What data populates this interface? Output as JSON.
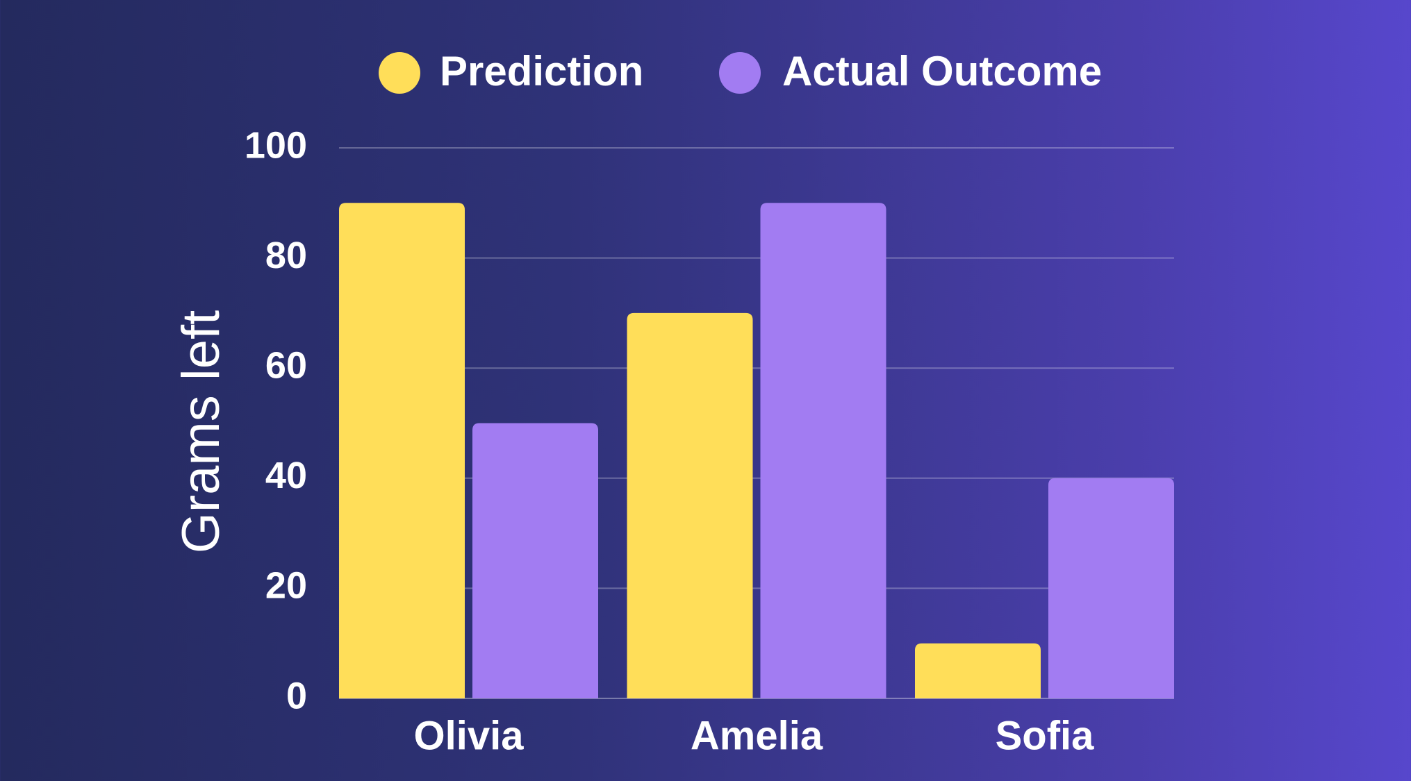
{
  "chart_data": {
    "type": "bar",
    "title": "",
    "xlabel": "",
    "ylabel": "Grams left",
    "categories": [
      "Olivia",
      "Amelia",
      "Sofia"
    ],
    "series": [
      {
        "name": "Prediction",
        "color": "#ffde59",
        "values": [
          90,
          70,
          10
        ]
      },
      {
        "name": "Actual Outcome",
        "color": "#a27cf2",
        "values": [
          50,
          90,
          40
        ]
      }
    ],
    "ylim": [
      0,
      100
    ],
    "yticks": [
      "0",
      "20",
      "40",
      "60",
      "80",
      "100"
    ],
    "grid": true,
    "legend_position": "top"
  }
}
